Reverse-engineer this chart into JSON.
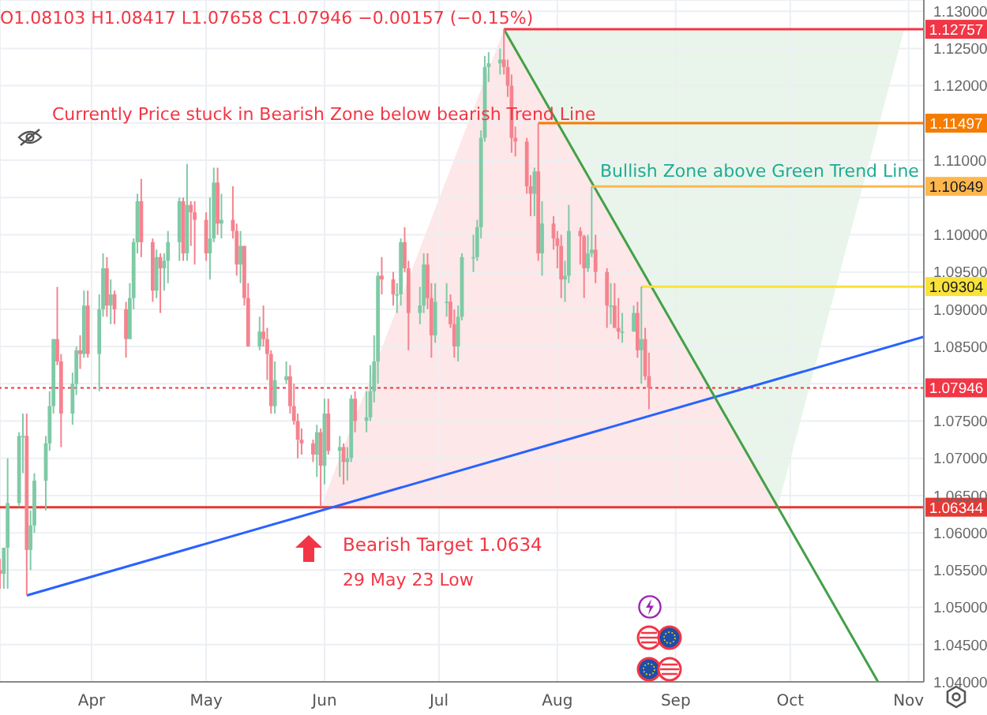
{
  "chart_data": {
    "type": "candlestick",
    "x": [
      "--03-08",
      "--03-09",
      "--03-10",
      "--03-13",
      "--03-14",
      "--03-15",
      "--03-16",
      "--03-17",
      "--03-20",
      "--03-21",
      "--03-22",
      "--03-23",
      "--03-24",
      "--03-27",
      "--03-28",
      "--03-29",
      "--03-30",
      "--03-31",
      "--04-03",
      "--04-04",
      "--04-05",
      "--04-06",
      "--04-07",
      "--04-10",
      "--04-11",
      "--04-12",
      "--04-13",
      "--04-14",
      "--04-17",
      "--04-18",
      "--04-19",
      "--04-20",
      "--04-21",
      "--04-24",
      "--04-25",
      "--04-26",
      "--04-27",
      "--04-28",
      "--05-01",
      "--05-02",
      "--05-03",
      "--05-04",
      "--05-05",
      "--05-08",
      "--05-09",
      "--05-10",
      "--05-11",
      "--05-12",
      "--05-15",
      "--05-16",
      "--05-17",
      "--05-18",
      "--05-19",
      "--05-22",
      "--05-23",
      "--05-24",
      "--05-25",
      "--05-26",
      "--05-29",
      "--05-30",
      "--05-31",
      "--06-01",
      "--06-02",
      "--06-05",
      "--06-06",
      "--06-07",
      "--06-08",
      "--06-09",
      "--06-12",
      "--06-13",
      "--06-14",
      "--06-15",
      "--06-16",
      "--06-19",
      "--06-20",
      "--06-21",
      "--06-22",
      "--06-23",
      "--06-26",
      "--06-27",
      "--06-28",
      "--06-29",
      "--06-30",
      "--07-03",
      "--07-04",
      "--07-05",
      "--07-06",
      "--07-07",
      "--07-10",
      "--07-11",
      "--07-12",
      "--07-13",
      "--07-14",
      "--07-17",
      "--07-18",
      "--07-19",
      "--07-20",
      "--07-21",
      "--07-24",
      "--07-25",
      "--07-26",
      "--07-27",
      "--07-28",
      "--07-31",
      "--08-01",
      "--08-02",
      "--08-03",
      "--08-04",
      "--08-07",
      "--08-08",
      "--08-09",
      "--08-10",
      "--08-11",
      "--08-14",
      "--08-15",
      "--08-16",
      "--08-17",
      "--08-18",
      "--08-21",
      "--08-22",
      "--08-23",
      "--08-24",
      "--08-25"
    ],
    "ohlc": [
      [
        1.055,
        1.0565,
        1.0525,
        1.0545
      ],
      [
        1.0545,
        1.058,
        1.0525,
        1.058
      ],
      [
        1.058,
        1.07,
        1.0525,
        1.064
      ],
      [
        1.064,
        1.0735,
        1.0635,
        1.073
      ],
      [
        1.073,
        1.076,
        1.068,
        1.073
      ],
      [
        1.073,
        1.076,
        1.0516,
        1.0577
      ],
      [
        1.0577,
        1.063,
        1.055,
        1.061
      ],
      [
        1.061,
        1.068,
        1.06,
        1.067
      ],
      [
        1.067,
        1.073,
        1.063,
        1.072
      ],
      [
        1.072,
        1.079,
        1.071,
        1.077
      ],
      [
        1.077,
        1.086,
        1.076,
        1.086
      ],
      [
        1.086,
        1.093,
        1.0825,
        1.083
      ],
      [
        1.083,
        1.084,
        1.0715,
        1.076
      ],
      [
        1.076,
        1.0815,
        1.0745,
        1.08
      ],
      [
        1.08,
        1.085,
        1.0785,
        1.0845
      ],
      [
        1.0845,
        1.0865,
        1.082,
        1.084
      ],
      [
        1.084,
        1.0925,
        1.0835,
        1.0905
      ],
      [
        1.0905,
        1.0925,
        1.0835,
        1.084
      ],
      [
        1.084,
        1.092,
        1.079,
        1.09
      ],
      [
        1.09,
        1.0975,
        1.089,
        1.0955
      ],
      [
        1.0955,
        1.097,
        1.089,
        1.0905
      ],
      [
        1.0905,
        1.094,
        1.088,
        1.092
      ],
      [
        1.092,
        1.0925,
        1.088,
        1.09
      ],
      [
        1.09,
        1.091,
        1.0835,
        1.086
      ],
      [
        1.086,
        1.0935,
        1.086,
        1.0915
      ],
      [
        1.0915,
        1.0995,
        1.09,
        1.099
      ],
      [
        1.099,
        1.1055,
        1.0975,
        1.1045
      ],
      [
        1.1045,
        1.1075,
        1.097,
        1.099
      ],
      [
        1.099,
        1.0995,
        1.091,
        1.0925
      ],
      [
        1.0925,
        1.098,
        1.0915,
        1.097
      ],
      [
        1.097,
        1.0975,
        1.0895,
        1.0955
      ],
      [
        1.0955,
        1.0975,
        1.0925,
        1.0965
      ],
      [
        1.0965,
        1.1005,
        1.0935,
        1.099
      ],
      [
        1.099,
        1.105,
        1.0965,
        1.1045
      ],
      [
        1.1045,
        1.105,
        1.0965,
        1.0975
      ],
      [
        1.0975,
        1.1095,
        1.0965,
        1.104
      ],
      [
        1.104,
        1.1045,
        1.0985,
        1.103
      ],
      [
        1.103,
        1.1045,
        1.096,
        1.102
      ],
      [
        1.102,
        1.103,
        1.0965,
        1.0975
      ],
      [
        1.0975,
        1.105,
        1.094,
        1.0995
      ],
      [
        1.0995,
        1.109,
        1.099,
        1.107
      ],
      [
        1.107,
        1.109,
        1.1,
        1.1015
      ],
      [
        1.1015,
        1.1055,
        1.0995,
        1.102
      ],
      [
        1.102,
        1.1065,
        1.0995,
        1.1005
      ],
      [
        1.1005,
        1.1015,
        1.0945,
        1.096
      ],
      [
        1.096,
        1.1005,
        1.0935,
        1.0985
      ],
      [
        1.0985,
        1.0985,
        1.0905,
        1.0915
      ],
      [
        1.0915,
        1.0935,
        1.085,
        1.085
      ],
      [
        1.085,
        1.089,
        1.0845,
        1.087
      ],
      [
        1.087,
        1.0905,
        1.085,
        1.086
      ],
      [
        1.086,
        1.0875,
        1.0805,
        1.084
      ],
      [
        1.084,
        1.0845,
        1.076,
        1.077
      ],
      [
        1.077,
        1.083,
        1.076,
        1.0805
      ],
      [
        1.0805,
        1.083,
        1.08,
        1.081
      ],
      [
        1.081,
        1.0825,
        1.076,
        1.077
      ],
      [
        1.077,
        1.08,
        1.0745,
        1.075
      ],
      [
        1.075,
        1.076,
        1.07,
        1.0725
      ],
      [
        1.0725,
        1.074,
        1.0705,
        1.072
      ],
      [
        1.072,
        1.0725,
        1.0695,
        1.0705
      ],
      [
        1.0705,
        1.0745,
        1.0675,
        1.0735
      ],
      [
        1.0735,
        1.074,
        1.0635,
        1.069
      ],
      [
        1.069,
        1.078,
        1.0665,
        1.076
      ],
      [
        1.076,
        1.078,
        1.0705,
        1.071
      ],
      [
        1.071,
        1.073,
        1.0675,
        1.0715
      ],
      [
        1.0715,
        1.072,
        1.0665,
        1.0695
      ],
      [
        1.0695,
        1.0715,
        1.067,
        1.07
      ],
      [
        1.07,
        1.0785,
        1.0695,
        1.078
      ],
      [
        1.078,
        1.079,
        1.0735,
        1.075
      ],
      [
        1.075,
        1.079,
        1.0735,
        1.0755
      ],
      [
        1.0755,
        1.0825,
        1.075,
        1.079
      ],
      [
        1.079,
        1.0865,
        1.0775,
        1.083
      ],
      [
        1.083,
        1.095,
        1.08,
        1.0945
      ],
      [
        1.0945,
        1.097,
        1.092,
        1.094
      ],
      [
        1.094,
        1.095,
        1.0905,
        1.092
      ],
      [
        1.092,
        1.0935,
        1.0895,
        1.092
      ],
      [
        1.092,
        1.0995,
        1.0905,
        1.099
      ],
      [
        1.099,
        1.101,
        1.095,
        1.0955
      ],
      [
        1.0955,
        1.0965,
        1.0845,
        1.0895
      ],
      [
        1.0895,
        1.093,
        1.088,
        1.0905
      ],
      [
        1.0905,
        1.0975,
        1.0895,
        1.096
      ],
      [
        1.096,
        1.0975,
        1.09,
        1.0915
      ],
      [
        1.0915,
        1.0935,
        1.0835,
        1.0865
      ],
      [
        1.0865,
        1.0935,
        1.0855,
        1.091
      ],
      [
        1.091,
        1.0935,
        1.089,
        1.091
      ],
      [
        1.091,
        1.092,
        1.0875,
        1.088
      ],
      [
        1.088,
        1.09,
        1.0835,
        1.085
      ],
      [
        1.085,
        1.0905,
        1.083,
        1.089
      ],
      [
        1.089,
        1.0975,
        1.0885,
        1.097
      ],
      [
        1.097,
        1.1,
        1.095,
        1.097
      ],
      [
        1.097,
        1.102,
        1.0965,
        1.101
      ],
      [
        1.101,
        1.114,
        1.0995,
        1.113
      ],
      [
        1.113,
        1.124,
        1.1125,
        1.1225
      ],
      [
        1.1225,
        1.1245,
        1.1205,
        1.123
      ],
      [
        1.123,
        1.125,
        1.1215,
        1.1235
      ],
      [
        1.1235,
        1.12757,
        1.1215,
        1.1225
      ],
      [
        1.1225,
        1.1235,
        1.1185,
        1.12
      ],
      [
        1.12,
        1.1215,
        1.111,
        1.113
      ],
      [
        1.113,
        1.1145,
        1.1105,
        1.1125
      ],
      [
        1.1125,
        1.113,
        1.1055,
        1.1065
      ],
      [
        1.1065,
        1.108,
        1.1025,
        1.1055
      ],
      [
        1.1055,
        1.109,
        1.1025,
        1.1085
      ],
      [
        1.1085,
        1.11497,
        1.0965,
        1.0975
      ],
      [
        1.0975,
        1.1045,
        1.0945,
        1.1015
      ],
      [
        1.1015,
        1.1025,
        1.098,
        1.0995
      ],
      [
        1.0995,
        1.1005,
        1.0955,
        1.0985
      ],
      [
        1.0985,
        1.1,
        1.0915,
        1.094
      ],
      [
        1.094,
        1.0965,
        1.091,
        1.0945
      ],
      [
        1.0945,
        1.104,
        1.0935,
        1.1005
      ],
      [
        1.1005,
        1.101,
        1.096,
        1.0998
      ],
      [
        1.0998,
        1.1,
        1.0915,
        1.0955
      ],
      [
        1.0955,
        1.1,
        1.095,
        1.0975
      ],
      [
        1.0975,
        1.10649,
        1.097,
        1.098
      ],
      [
        1.098,
        1.1,
        1.0935,
        1.095
      ],
      [
        1.095,
        1.0955,
        1.0875,
        1.0905
      ],
      [
        1.0905,
        1.0935,
        1.088,
        1.0905
      ],
      [
        1.0905,
        1.0935,
        1.0875,
        1.0875
      ],
      [
        1.0875,
        1.0915,
        1.086,
        1.087
      ],
      [
        1.087,
        1.0895,
        1.0855,
        1.087
      ],
      [
        1.087,
        1.0905,
        1.087,
        1.0895
      ],
      [
        1.0895,
        1.091,
        1.0835,
        1.0845
      ],
      [
        1.0845,
        1.09304,
        1.08,
        1.086
      ],
      [
        1.086,
        1.0875,
        1.0805,
        1.081
      ],
      [
        1.08103,
        1.08417,
        1.07658,
        1.07946
      ]
    ],
    "series": [
      {
        "type": "line",
        "color": "#2962ff",
        "x": [
          "--03-15",
          "--11-05"
        ],
        "values": [
          1.0516,
          1.0863
        ]
      },
      {
        "type": "line",
        "color": "#43a047",
        "x": [
          "--07-18",
          "--10-24"
        ],
        "values": [
          1.12757,
          1.04
        ]
      },
      {
        "type": "line",
        "name": "1.12757",
        "color": "#f23645",
        "x": [
          "--07-18",
          "--11-05"
        ],
        "values": [
          1.12757,
          1.12757
        ]
      },
      {
        "type": "line",
        "name": "1.11497",
        "color": "#f57c00",
        "x": [
          "--07-27",
          "--11-05"
        ],
        "values": [
          1.11497,
          1.11497
        ]
      },
      {
        "type": "line",
        "name": "1.10649",
        "color": "#ffb74d",
        "x": [
          "--08-10",
          "--11-05"
        ],
        "values": [
          1.10649,
          1.10649
        ]
      },
      {
        "type": "line",
        "name": "1.09304",
        "color": "#f9e23a",
        "x": [
          "--08-23",
          "--11-05"
        ],
        "values": [
          1.09304,
          1.09304
        ]
      }
    ],
    "ref_lines": [
      {
        "axis": "y",
        "value": 1.07946,
        "label": "1.07946",
        "color": "#f23645",
        "line_style": "dotted"
      },
      {
        "axis": "y",
        "value": 1.06344,
        "label": "1.06344",
        "color": "#e53935"
      }
    ],
    "annotations": [
      "O1.08103 H1.08417 L1.07658 C1.07946 −0.00157 (−0.15%)",
      "Currently Price stuck in Bearish Zone below bearish Trend Line",
      "Bullish Zone above Green Trend Line",
      "Bearish Target 1.0634",
      "29 May 23 Low"
    ],
    "xlim": [
      "--03-08",
      "--11-05"
    ],
    "xticks": [
      {
        "value": "--04-01",
        "label": "Apr"
      },
      {
        "value": "--05-01",
        "label": "May"
      },
      {
        "value": "--06-01",
        "label": "Jun"
      },
      {
        "value": "--07-01",
        "label": "Jul"
      },
      {
        "value": "--08-01",
        "label": "Aug"
      },
      {
        "value": "--09-01",
        "label": "Sep"
      },
      {
        "value": "--10-01",
        "label": "Oct"
      },
      {
        "value": "--11-01",
        "label": "Nov"
      }
    ],
    "ylim": [
      1.04,
      1.1315
    ],
    "yticks": [
      {
        "value": 1.04,
        "label": "1.04000"
      },
      {
        "value": 1.045,
        "label": "1.04500"
      },
      {
        "value": 1.05,
        "label": "1.05000"
      },
      {
        "value": 1.055,
        "label": "1.05500"
      },
      {
        "value": 1.06,
        "label": "1.06000"
      },
      {
        "value": 1.065,
        "label": "1.06500"
      },
      {
        "value": 1.07,
        "label": "1.07000"
      },
      {
        "value": 1.075,
        "label": "1.07500"
      },
      {
        "value": 1.08,
        "label": null
      },
      {
        "value": 1.085,
        "label": "1.08500"
      },
      {
        "value": 1.09,
        "label": "1.09000"
      },
      {
        "value": 1.095,
        "label": "1.09500"
      },
      {
        "value": 1.1,
        "label": "1.10000"
      },
      {
        "value": 1.105,
        "label": null
      },
      {
        "value": 1.11,
        "label": "1.11000"
      },
      {
        "value": 1.115,
        "label": null
      },
      {
        "value": 1.12,
        "label": "1.12000"
      },
      {
        "value": 1.125,
        "label": "1.12500"
      },
      {
        "value": 1.13,
        "label": "1.13000"
      }
    ],
    "grid": true
  }
}
